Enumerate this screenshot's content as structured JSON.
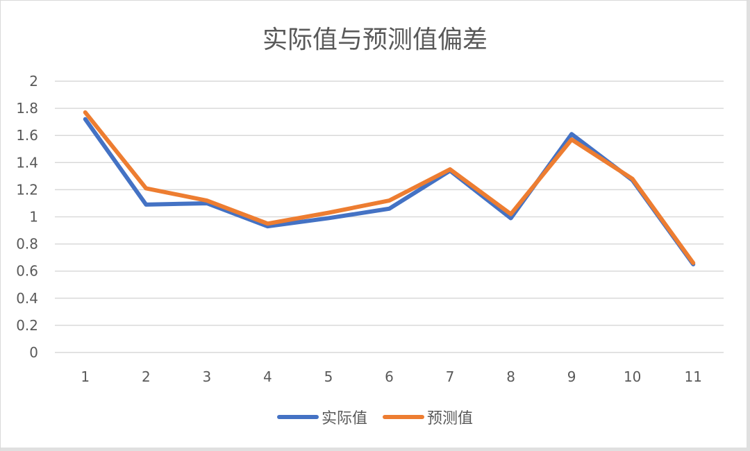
{
  "chart_data": {
    "type": "line",
    "title": "实际值与预测值偏差",
    "xlabel": "",
    "ylabel": "",
    "categories": [
      "1",
      "2",
      "3",
      "4",
      "5",
      "6",
      "7",
      "8",
      "9",
      "10",
      "11"
    ],
    "series": [
      {
        "name": "实际值",
        "color": "#4472C4",
        "values": [
          1.72,
          1.09,
          1.1,
          0.93,
          0.99,
          1.06,
          1.34,
          0.99,
          1.61,
          1.27,
          0.65
        ]
      },
      {
        "name": "预测值",
        "color": "#ED7D31",
        "values": [
          1.77,
          1.21,
          1.12,
          0.95,
          1.03,
          1.12,
          1.35,
          1.02,
          1.57,
          1.28,
          0.66
        ]
      }
    ],
    "ylim": [
      0,
      2
    ],
    "yticks": [
      "0",
      "0.2",
      "0.4",
      "0.6",
      "0.8",
      "1",
      "1.2",
      "1.4",
      "1.6",
      "1.8",
      "2"
    ],
    "grid": true,
    "legend_position": "bottom"
  },
  "legend": [
    {
      "label": "实际值",
      "color": "#4472C4"
    },
    {
      "label": "预测值",
      "color": "#ED7D31"
    }
  ]
}
